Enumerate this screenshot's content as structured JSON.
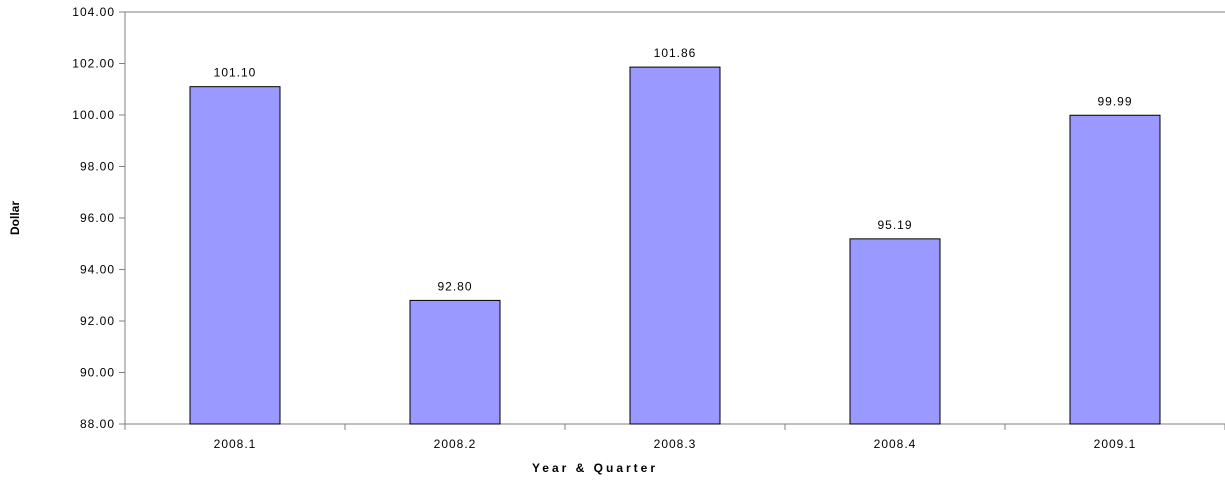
{
  "chart_data": {
    "type": "bar",
    "categories": [
      "2008.1",
      "2008.2",
      "2008.3",
      "2008.4",
      "2009.1"
    ],
    "values": [
      101.1,
      92.8,
      101.86,
      95.19,
      99.99
    ],
    "data_labels": [
      "101.10",
      "92.80",
      "101.86",
      "95.19",
      "99.99"
    ],
    "title": "",
    "xlabel": "Year & Quarter",
    "ylabel": "Dollar",
    "ylim": [
      88,
      104
    ],
    "yticks": [
      88,
      90,
      92,
      94,
      96,
      98,
      100,
      102,
      104
    ],
    "ytick_labels": [
      "88.00",
      "90.00",
      "92.00",
      "94.00",
      "96.00",
      "98.00",
      "100.00",
      "102.00",
      "104.00"
    ],
    "grid": false,
    "legend": "none",
    "colors": {
      "bar_fill": "#9999ff",
      "bar_stroke": "#000000",
      "axis": "#808080",
      "text": "#000000"
    }
  }
}
